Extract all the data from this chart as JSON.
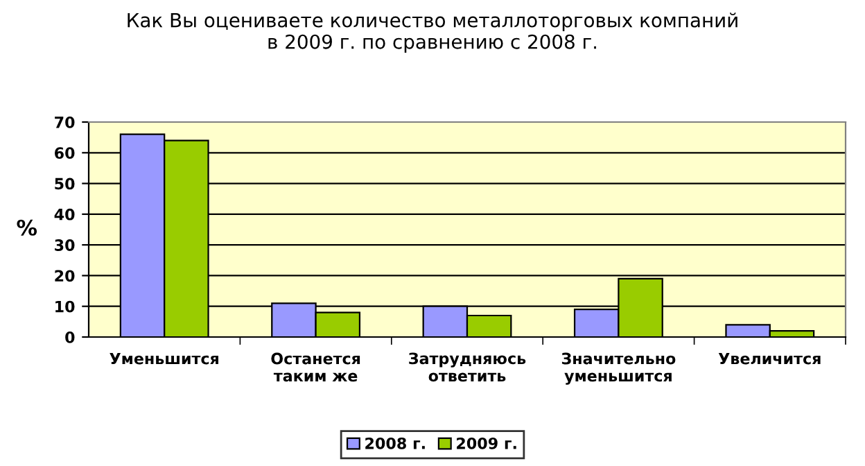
{
  "chart_data": {
    "type": "bar",
    "title": "Как Вы оцениваете количество металлоторговых компаний\nв 2009 г. по сравнению с 2008 г.",
    "ylabel": "%",
    "categories": [
      "Уменьшится",
      "Останется\nтаким же",
      "Затрудняюсь\nответить",
      "Значительно\nуменьшится",
      "Увеличится"
    ],
    "series": [
      {
        "name": "2008 г.",
        "color": "#9999ff",
        "values": [
          66,
          11,
          10,
          9,
          4
        ]
      },
      {
        "name": "2009 г.",
        "color": "#99cc00",
        "values": [
          64,
          8,
          7,
          19,
          2
        ]
      }
    ],
    "ylim": [
      0,
      70
    ],
    "yticks": [
      0,
      10,
      20,
      30,
      40,
      50,
      60,
      70
    ],
    "grid": "y",
    "legend": "bottom"
  }
}
